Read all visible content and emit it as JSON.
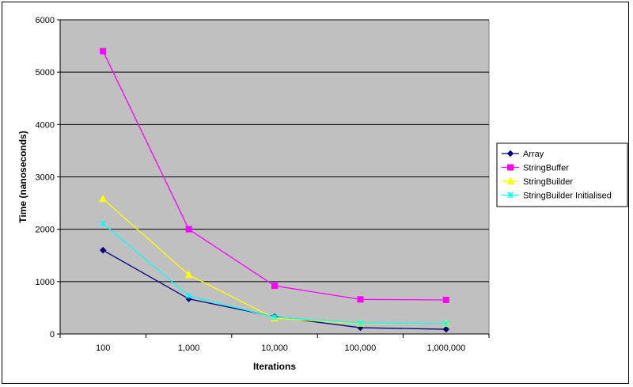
{
  "chart_data": {
    "type": "line",
    "title": "",
    "xlabel": "Iterations",
    "ylabel": "Time (nanoseconds)",
    "categories": [
      "100",
      "1,000",
      "10,000",
      "100,000",
      "1,000,000"
    ],
    "yticks": [
      "0",
      "1000",
      "2000",
      "3000",
      "4000",
      "5000",
      "6000"
    ],
    "ylim": [
      0,
      6000
    ],
    "grid": true,
    "legend_position": "right",
    "plot_background": "#c0c0c0",
    "series": [
      {
        "name": "Array",
        "color": "#000080",
        "marker": "diamond",
        "values": [
          1600,
          670,
          330,
          120,
          90
        ]
      },
      {
        "name": "StringBuffer",
        "color": "#ff00ff",
        "marker": "square",
        "values": [
          5400,
          2000,
          920,
          660,
          650
        ]
      },
      {
        "name": "StringBuilder",
        "color": "#ffff00",
        "marker": "triangle",
        "values": [
          2580,
          1130,
          300,
          200,
          200
        ]
      },
      {
        "name": "StringBuilder Initialised",
        "color": "#00ffff",
        "marker": "x",
        "values": [
          2110,
          730,
          320,
          210,
          200
        ]
      }
    ]
  }
}
